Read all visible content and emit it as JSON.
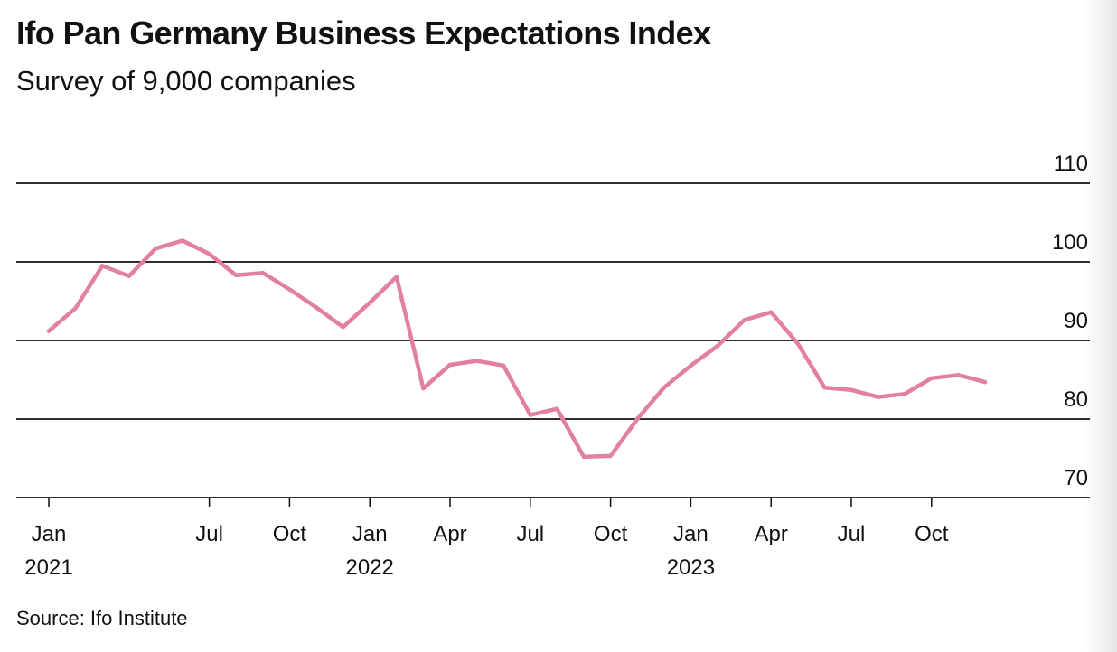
{
  "title": "Ifo Pan Germany Business Expectations Index",
  "subtitle": "Survey of 9,000 companies",
  "source": "Source: Ifo Institute",
  "colors": {
    "line": "#e2809f",
    "text": "#111111",
    "grid": "#111111"
  },
  "chart_data": {
    "type": "line",
    "title": "Ifo Pan Germany Business Expectations Index",
    "subtitle": "Survey of 9,000 companies",
    "ylim": [
      70,
      110
    ],
    "yticks": [
      110,
      100,
      90,
      80,
      70
    ],
    "grid": true,
    "x_ticks": [
      {
        "date": "2021-01",
        "label": "Jan",
        "year": "2021"
      },
      {
        "date": "2021-07",
        "label": "Jul",
        "year": ""
      },
      {
        "date": "2021-10",
        "label": "Oct",
        "year": ""
      },
      {
        "date": "2022-01",
        "label": "Jan",
        "year": "2022"
      },
      {
        "date": "2022-04",
        "label": "Apr",
        "year": ""
      },
      {
        "date": "2022-07",
        "label": "Jul",
        "year": ""
      },
      {
        "date": "2022-10",
        "label": "Oct",
        "year": ""
      },
      {
        "date": "2023-01",
        "label": "Jan",
        "year": "2023"
      },
      {
        "date": "2023-04",
        "label": "Apr",
        "year": ""
      },
      {
        "date": "2023-07",
        "label": "Jul",
        "year": ""
      },
      {
        "date": "2023-10",
        "label": "Oct",
        "year": ""
      }
    ],
    "series": [
      {
        "x": [
          "2021-01",
          "2021-02",
          "2021-03",
          "2021-04",
          "2021-05",
          "2021-06",
          "2021-07",
          "2021-08",
          "2021-09",
          "2021-10",
          "2021-11",
          "2021-12",
          "2022-01",
          "2022-02",
          "2022-03",
          "2022-04",
          "2022-05",
          "2022-06",
          "2022-07",
          "2022-08",
          "2022-09",
          "2022-10",
          "2022-11",
          "2022-12",
          "2023-01",
          "2023-02",
          "2023-03",
          "2023-04",
          "2023-05",
          "2023-06",
          "2023-07",
          "2023-08",
          "2023-09",
          "2023-10",
          "2023-11",
          "2023-12"
        ],
        "values": [
          91.2,
          94.1,
          99.5,
          98.2,
          101.7,
          102.7,
          101.0,
          98.3,
          98.6,
          96.5,
          94.2,
          91.7,
          94.8,
          98.1,
          83.9,
          86.9,
          87.4,
          86.8,
          80.5,
          81.3,
          75.2,
          75.3,
          80.0,
          84.0,
          86.8,
          89.3,
          92.6,
          93.6,
          89.6,
          84.0,
          83.7,
          82.8,
          83.2,
          85.2,
          85.6,
          84.7
        ]
      }
    ]
  }
}
